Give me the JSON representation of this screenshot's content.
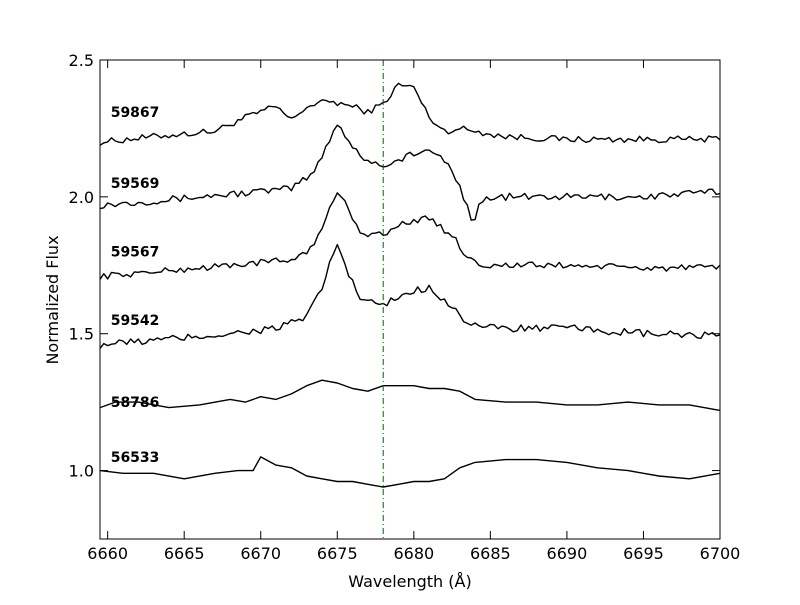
{
  "chart_data": {
    "type": "line",
    "xlabel": "Wavelength (Å)",
    "ylabel": "Normalized Flux",
    "xlim": [
      6659.5,
      6700
    ],
    "ylim": [
      0.75,
      2.5
    ],
    "xticks": [
      6660,
      6665,
      6670,
      6675,
      6680,
      6685,
      6690,
      6695,
      6700
    ],
    "xtick_labels": [
      "6660",
      "6665",
      "6670",
      "6675",
      "6680",
      "6685",
      "6690",
      "6695",
      "6700"
    ],
    "yticks": [
      1.0,
      1.5,
      2.0,
      2.5
    ],
    "ytick_labels": [
      "1.0",
      "1.5",
      "2.0",
      "2.5"
    ],
    "grid": false,
    "reference_line": {
      "x": 6678,
      "color": "#006400",
      "style": "dashed"
    },
    "series": [
      {
        "name": "59867",
        "label_at": [
          6660.2,
          2.31
        ],
        "color": "#000000",
        "noise": 0.012,
        "noise_step": 0.25,
        "x": [
          6659.5,
          6663,
          6667,
          6669,
          6671,
          6672,
          6673,
          6674.5,
          6676,
          6677,
          6678,
          6679,
          6680,
          6681,
          6682,
          6683,
          6686,
          6690,
          6695,
          6700
        ],
        "y": [
          2.2,
          2.22,
          2.24,
          2.29,
          2.33,
          2.28,
          2.33,
          2.35,
          2.33,
          2.31,
          2.34,
          2.41,
          2.4,
          2.29,
          2.24,
          2.25,
          2.22,
          2.21,
          2.21,
          2.21
        ]
      },
      {
        "name": "59569",
        "label_at": [
          6660.2,
          2.05
        ],
        "color": "#000000",
        "noise": 0.013,
        "noise_step": 0.25,
        "x": [
          6659.5,
          6664,
          6668,
          6672,
          6673.5,
          6674.4,
          6675,
          6675.8,
          6676.5,
          6677.5,
          6678.5,
          6680,
          6681.5,
          6682.5,
          6683.5,
          6683.9,
          6684.4,
          6686,
          6690,
          6695,
          6700
        ],
        "y": [
          1.97,
          1.99,
          2.01,
          2.03,
          2.09,
          2.2,
          2.27,
          2.2,
          2.15,
          2.12,
          2.12,
          2.16,
          2.16,
          2.1,
          1.97,
          1.9,
          1.99,
          2.0,
          2.0,
          2.0,
          2.02
        ]
      },
      {
        "name": "59567",
        "label_at": [
          6660.2,
          1.8
        ],
        "color": "#000000",
        "noise": 0.012,
        "noise_step": 0.25,
        "x": [
          6659.5,
          6664,
          6668,
          6672,
          6673.5,
          6674.4,
          6675,
          6675.8,
          6676.5,
          6678,
          6679.5,
          6681,
          6682.5,
          6683.5,
          6684.5,
          6686,
          6690,
          6695,
          6700
        ],
        "y": [
          1.71,
          1.73,
          1.75,
          1.77,
          1.82,
          1.94,
          2.02,
          1.95,
          1.87,
          1.86,
          1.91,
          1.92,
          1.86,
          1.78,
          1.75,
          1.75,
          1.75,
          1.74,
          1.74
        ]
      },
      {
        "name": "59542",
        "label_at": [
          6660.2,
          1.55
        ],
        "color": "#000000",
        "noise": 0.014,
        "noise_step": 0.25,
        "x": [
          6659.5,
          6664,
          6668,
          6671,
          6673,
          6674,
          6674.5,
          6675,
          6675.7,
          6676.5,
          6678,
          6679.5,
          6681,
          6682.5,
          6683.5,
          6685,
          6690,
          6695,
          6700
        ],
        "y": [
          1.46,
          1.48,
          1.5,
          1.52,
          1.56,
          1.66,
          1.76,
          1.83,
          1.72,
          1.63,
          1.6,
          1.65,
          1.67,
          1.6,
          1.54,
          1.52,
          1.52,
          1.5,
          1.49
        ]
      },
      {
        "name": "58786",
        "label_at": [
          6660.2,
          1.25
        ],
        "color": "#000000",
        "noise": 0.0,
        "noise_step": 0.25,
        "x": [
          6659.5,
          6660.5,
          6662,
          6664,
          6666,
          6668,
          6669,
          6670,
          6671,
          6672,
          6673,
          6674,
          6675,
          6676,
          6677,
          6678,
          6679,
          6680,
          6681,
          6682,
          6683,
          6684,
          6686,
          6688,
          6690,
          6692,
          6694,
          6696,
          6698,
          6700
        ],
        "y": [
          1.23,
          1.25,
          1.25,
          1.23,
          1.24,
          1.26,
          1.25,
          1.27,
          1.26,
          1.28,
          1.31,
          1.33,
          1.32,
          1.3,
          1.29,
          1.31,
          1.31,
          1.31,
          1.3,
          1.3,
          1.29,
          1.26,
          1.25,
          1.25,
          1.24,
          1.24,
          1.25,
          1.24,
          1.24,
          1.22
        ]
      },
      {
        "name": "56533",
        "label_at": [
          6660.2,
          1.05
        ],
        "color": "#000000",
        "noise": 0.0,
        "noise_step": 0.25,
        "x": [
          6659.5,
          6661,
          6663,
          6665,
          6667,
          6668.5,
          6669.5,
          6670,
          6671,
          6672,
          6673,
          6674,
          6675,
          6676,
          6677,
          6678,
          6679,
          6680,
          6681,
          6682,
          6683,
          6684,
          6686,
          6688,
          6690,
          6692,
          6694,
          6696,
          6698,
          6700
        ],
        "y": [
          1.0,
          0.99,
          0.99,
          0.97,
          0.99,
          1.0,
          1.0,
          1.05,
          1.02,
          1.01,
          0.98,
          0.97,
          0.96,
          0.96,
          0.95,
          0.94,
          0.95,
          0.96,
          0.96,
          0.97,
          1.01,
          1.03,
          1.04,
          1.04,
          1.03,
          1.01,
          1.0,
          0.98,
          0.97,
          0.99
        ]
      }
    ]
  }
}
